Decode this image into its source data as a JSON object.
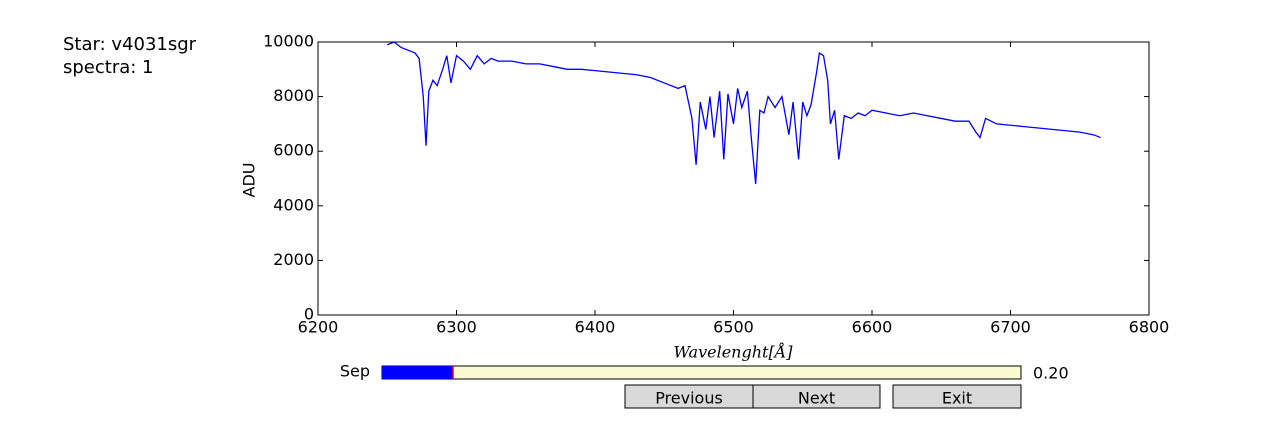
{
  "info": {
    "star": "Star: v4031sgr",
    "spectra": "spectra: 1"
  },
  "chart_data": {
    "type": "line",
    "color": "#0000ff",
    "x_label": "Wavelenght[Å]",
    "y_label": "ADU",
    "xlim": [
      6200,
      6800
    ],
    "xticks": [
      6200,
      6300,
      6400,
      6500,
      6600,
      6700,
      6800
    ],
    "ylim": [
      0,
      10000
    ],
    "yticks": [
      0,
      2000,
      4000,
      6000,
      8000,
      10000
    ],
    "x": [
      6250,
      6255,
      6260,
      6265,
      6270,
      6273,
      6276,
      6278,
      6280,
      6283,
      6286,
      6290,
      6293,
      6296,
      6300,
      6305,
      6310,
      6315,
      6320,
      6325,
      6330,
      6340,
      6350,
      6360,
      6370,
      6380,
      6390,
      6400,
      6410,
      6420,
      6430,
      6440,
      6450,
      6460,
      6465,
      6470,
      6473,
      6476,
      6480,
      6483,
      6486,
      6490,
      6493,
      6496,
      6500,
      6503,
      6506,
      6510,
      6513,
      6516,
      6519,
      6522,
      6525,
      6530,
      6535,
      6540,
      6543,
      6547,
      6550,
      6553,
      6556,
      6560,
      6562,
      6565,
      6568,
      6570,
      6573,
      6576,
      6580,
      6585,
      6590,
      6595,
      6600,
      6610,
      6620,
      6630,
      6640,
      6650,
      6660,
      6670,
      6675,
      6678,
      6682,
      6690,
      6700,
      6710,
      6720,
      6730,
      6740,
      6750,
      6760,
      6765
    ],
    "values": [
      9900,
      10000,
      9800,
      9700,
      9600,
      9400,
      8000,
      6200,
      8200,
      8600,
      8400,
      9000,
      9500,
      8500,
      9500,
      9300,
      9000,
      9500,
      9200,
      9400,
      9300,
      9300,
      9200,
      9200,
      9100,
      9000,
      9000,
      8950,
      8900,
      8850,
      8800,
      8700,
      8500,
      8300,
      8400,
      7200,
      5500,
      7800,
      6800,
      8000,
      6500,
      8200,
      5700,
      8100,
      7000,
      8300,
      7600,
      8200,
      6400,
      4800,
      7500,
      7400,
      8000,
      7600,
      8000,
      6600,
      7800,
      5700,
      7800,
      7300,
      7700,
      8900,
      9600,
      9500,
      8600,
      7000,
      7500,
      5700,
      7300,
      7200,
      7400,
      7300,
      7500,
      7400,
      7300,
      7400,
      7300,
      7200,
      7100,
      7100,
      6700,
      6500,
      7200,
      7000,
      6950,
      6900,
      6850,
      6800,
      6750,
      6700,
      6600,
      6500
    ]
  },
  "slider": {
    "label": "Sep",
    "value": 0.2,
    "value_label": "0.20",
    "min": 0,
    "max": 1.8
  },
  "buttons": [
    "Previous",
    "Next",
    "Exit"
  ]
}
